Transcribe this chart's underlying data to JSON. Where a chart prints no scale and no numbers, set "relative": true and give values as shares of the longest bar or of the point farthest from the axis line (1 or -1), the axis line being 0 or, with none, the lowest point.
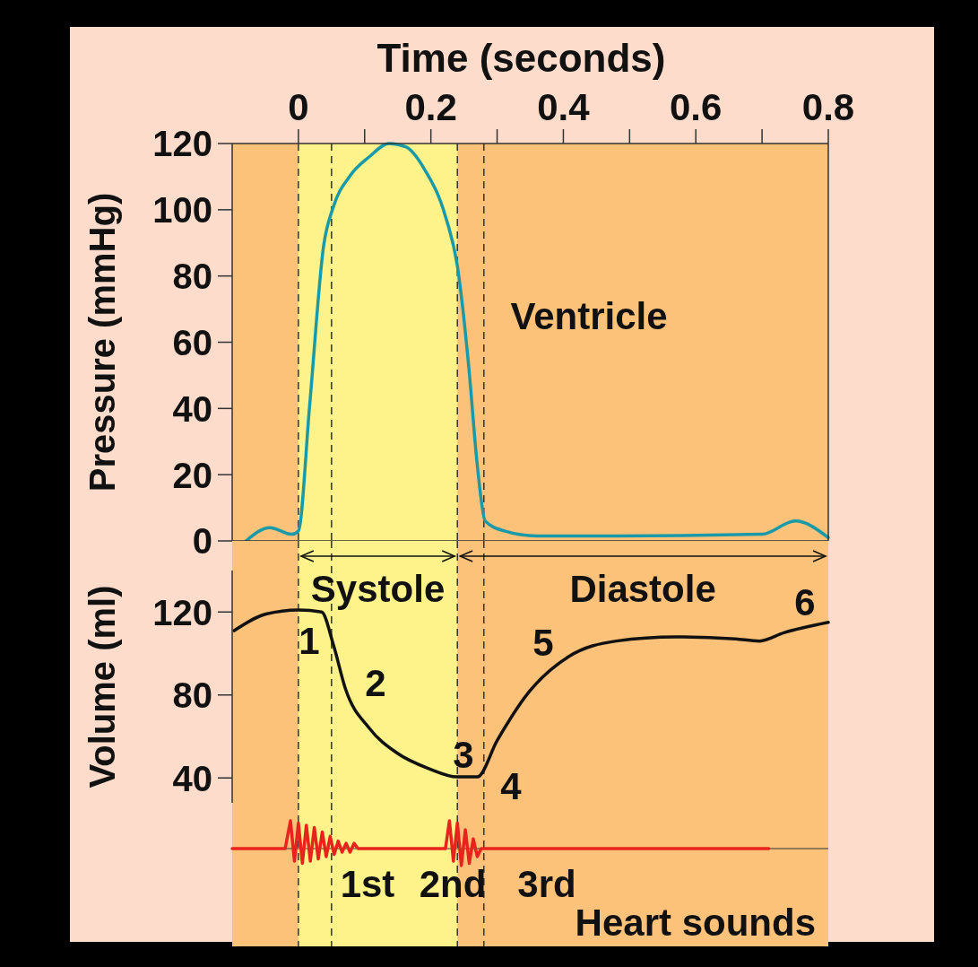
{
  "chart_data": [
    {
      "type": "line",
      "xlabel": "Time (seconds)",
      "ylabel": "Pressure (mmHg)",
      "xlim": [
        -0.1,
        0.8
      ],
      "xticks": [
        0,
        {
          "value": 0.1,
          "label": null
        },
        0.2,
        {
          "value": 0.3,
          "label": null
        },
        0.4,
        {
          "value": 0.5,
          "label": null
        },
        0.6,
        {
          "value": 0.7,
          "label": null
        },
        0.8
      ],
      "ylim": [
        0,
        120
      ],
      "yticks": [
        0,
        20,
        40,
        60,
        80,
        100,
        120
      ],
      "bands": [
        {
          "axis": "x",
          "from": 0,
          "to": 0.24,
          "color": "#fdf38a"
        }
      ],
      "ref_lines": [
        {
          "axis": "x",
          "value": 0,
          "line_style": "dashed",
          "color": "#333333"
        },
        {
          "axis": "x",
          "value": 0.05,
          "line_style": "dashed",
          "color": "#333333"
        },
        {
          "axis": "x",
          "value": 0.24,
          "line_style": "dashed",
          "color": "#333333"
        },
        {
          "axis": "x",
          "value": 0.28,
          "line_style": "dashed",
          "color": "#333333"
        }
      ],
      "annotations": [
        "Ventricle"
      ],
      "series": [
        {
          "color": "#1a9aa8",
          "x": [
            -0.079,
            -0.043,
            -0.01,
            0,
            0.017,
            0.038,
            0.053,
            0.077,
            0.107,
            0.137,
            0.162,
            0.191,
            0.222,
            0.24,
            0.257,
            0.27,
            0.282,
            0.311,
            0.36,
            0.48,
            0.7,
            0.75,
            0.8
          ],
          "values": [
            0,
            4,
            2,
            3,
            41,
            89,
            101,
            110,
            116,
            120,
            119,
            112,
            98,
            83,
            53,
            23,
            6,
            3,
            1.5,
            1.5,
            2,
            6,
            1
          ]
        }
      ]
    },
    {
      "type": "line",
      "ylabel": "Volume (ml)",
      "tick_labels": "y",
      "xlim": [
        -0.1,
        0.8
      ],
      "ylim": [
        28,
        140
      ],
      "yticks": [
        40,
        80,
        120
      ],
      "bands": [
        {
          "axis": "x",
          "from": 0,
          "to": 0.24,
          "label": "Systole",
          "color": "#fdf38a"
        },
        {
          "axis": "x",
          "from": 0.24,
          "to": 0.8,
          "label": "Diastole",
          "color": "#fdc27a"
        }
      ],
      "ref_lines": [
        {
          "axis": "x",
          "value": 0,
          "line_style": "dashed",
          "color": "#333333"
        },
        {
          "axis": "x",
          "value": 0.05,
          "line_style": "dashed",
          "color": "#333333"
        },
        {
          "axis": "x",
          "value": 0.24,
          "line_style": "dashed",
          "color": "#333333"
        },
        {
          "axis": "x",
          "value": 0.28,
          "line_style": "dashed",
          "color": "#333333"
        }
      ],
      "annotations": [
        "1",
        "2",
        "3",
        "4",
        "5",
        "6"
      ],
      "series": [
        {
          "color": "#111111",
          "x": [
            -0.097,
            -0.049,
            0,
            0.035,
            0.053,
            0.071,
            0.107,
            0.149,
            0.197,
            0.24,
            0.27,
            0.3,
            0.347,
            0.408,
            0.48,
            0.57,
            0.66,
            0.696,
            0.733,
            0.8
          ],
          "values": [
            111,
            119,
            121,
            120,
            104,
            83,
            64,
            52,
            44.5,
            40.5,
            40.5,
            58,
            81,
            98.5,
            106,
            108,
            107,
            106,
            110,
            115
          ]
        }
      ]
    },
    {
      "type": "line",
      "relative": true,
      "tick_labels": false,
      "xlim": [
        -0.1,
        0.8
      ],
      "bands": [
        {
          "axis": "x",
          "from": 0,
          "to": 0.24,
          "color": "#fdf38a"
        }
      ],
      "ref_lines": [
        {
          "axis": "x",
          "value": 0,
          "line_style": "dashed",
          "color": "#333333"
        },
        {
          "axis": "x",
          "value": 0.05,
          "line_style": "dashed",
          "color": "#333333"
        },
        {
          "axis": "x",
          "value": 0.24,
          "line_style": "dashed",
          "color": "#333333"
        },
        {
          "axis": "x",
          "value": 0.28,
          "line_style": "dashed",
          "color": "#333333"
        }
      ],
      "annotations": [
        "1st",
        "2nd",
        "3rd",
        "Heart sounds"
      ],
      "series": [
        {
          "color": "#e8231d",
          "x": [
            -0.1,
            -0.02,
            -0.012,
            -0.006,
            0,
            0.006,
            0.012,
            0.018,
            0.024,
            0.03,
            0.036,
            0.042,
            0.048,
            0.054,
            0.06,
            0.066,
            0.072,
            0.078,
            0.084,
            0.09,
            0.222,
            0.228,
            0.234,
            0.24,
            0.246,
            0.252,
            0.258,
            0.264,
            0.27,
            0.276,
            0.71
          ],
          "values": [
            0,
            0,
            1,
            -0.45,
            0.92,
            -0.53,
            0.84,
            -0.45,
            0.76,
            -0.37,
            0.6,
            -0.29,
            0.44,
            -0.21,
            0.27,
            -0.13,
            0.19,
            -0.13,
            0.19,
            0,
            0,
            1,
            -0.45,
            0.92,
            -0.61,
            0.68,
            -0.53,
            0.35,
            -0.29,
            0,
            0
          ]
        }
      ]
    }
  ]
}
